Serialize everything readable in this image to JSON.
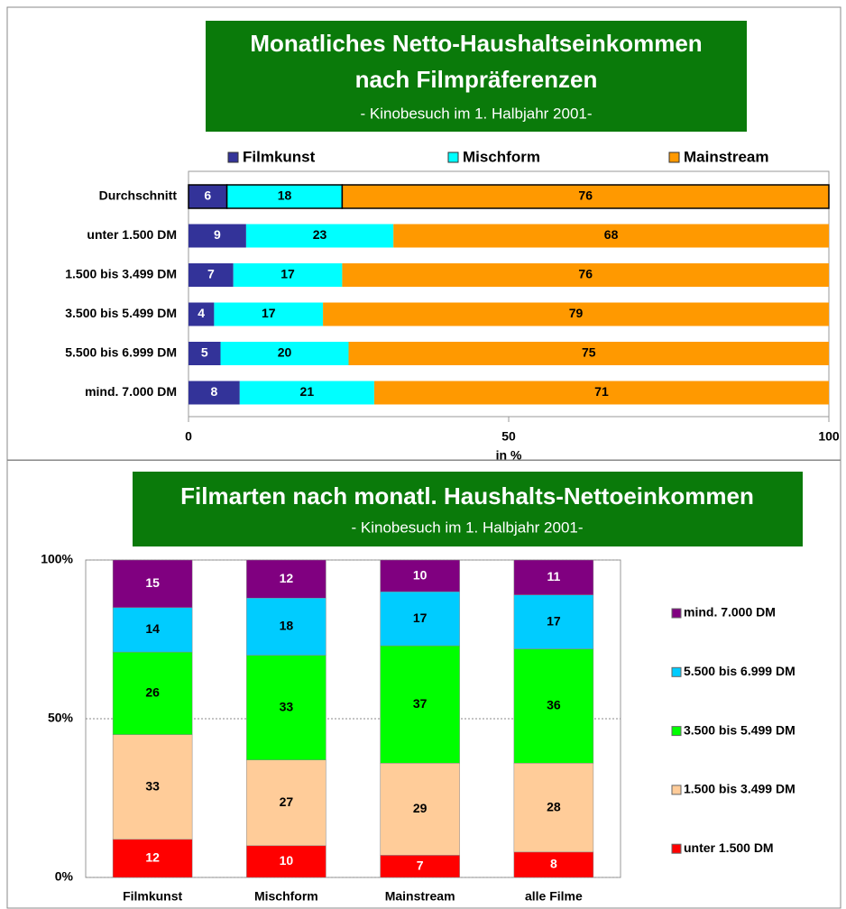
{
  "chart_data": [
    {
      "type": "bar",
      "orientation": "horizontal",
      "stacked": true,
      "title": [
        "Monatliches Netto-Haushaltseinkommen",
        "nach  Filmpräferenzen"
      ],
      "subtitle": "- Kinobesuch im 1. Halbjahr 2001-",
      "x_label": "in %",
      "categories": [
        "Durchschnitt",
        "unter 1.500 DM",
        "1.500 bis 3.499 DM",
        "3.500 bis 5.499 DM",
        "5.500 bis 6.999 DM",
        "mind. 7.000 DM"
      ],
      "series": [
        {
          "name": "Filmkunst",
          "color": "#333399",
          "values": [
            6,
            9,
            7,
            4,
            5,
            8
          ]
        },
        {
          "name": "Mischform",
          "color": "#00ffff",
          "values": [
            18,
            23,
            17,
            17,
            20,
            21
          ]
        },
        {
          "name": "Mainstream",
          "color": "#ff9900",
          "values": [
            76,
            68,
            76,
            79,
            75,
            71
          ]
        }
      ],
      "xlim": [
        0,
        100
      ],
      "xticks": [
        0,
        50,
        100
      ],
      "legend": "top"
    },
    {
      "type": "bar",
      "orientation": "vertical",
      "stacked": true,
      "title": "Filmarten nach monatl. Haushalts-Nettoeinkommen",
      "subtitle": "- Kinobesuch im 1. Halbjahr 2001-",
      "categories": [
        "Filmkunst",
        "Mischform",
        "Mainstream",
        "alle Filme"
      ],
      "series": [
        {
          "name": "unter 1.500 DM",
          "color": "#ff0000",
          "values": [
            12,
            10,
            7,
            8
          ]
        },
        {
          "name": "1.500 bis 3.499 DM",
          "color": "#ffcc99",
          "values": [
            33,
            27,
            29,
            28
          ]
        },
        {
          "name": "3.500 bis 5.499 DM",
          "color": "#00ff00",
          "values": [
            26,
            33,
            37,
            36
          ]
        },
        {
          "name": "5.500 bis 6.999 DM",
          "color": "#00ccff",
          "values": [
            14,
            18,
            17,
            17
          ]
        },
        {
          "name": "mind. 7.000 DM",
          "color": "#800080",
          "values": [
            15,
            12,
            10,
            11
          ]
        }
      ],
      "ylim": [
        0,
        100
      ],
      "yticks": [
        {
          "value": 0,
          "label": "0%"
        },
        {
          "value": 50,
          "label": "50%"
        },
        {
          "value": 100,
          "label": "100%"
        }
      ],
      "grid": true,
      "legend": "right"
    }
  ]
}
